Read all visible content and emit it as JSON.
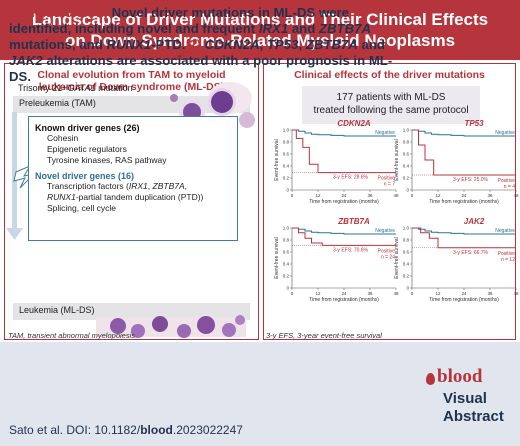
{
  "header": {
    "title_line1": "Landscape of Driver Mutations and Their Clinical Effects",
    "title_line2": "on Down Syndrome-Related Myeloid Neoplasms"
  },
  "left_panel": {
    "title_line1": "Clonal evolution from TAM to myeloid",
    "title_line2": "leukemia of Down syndrome (ML-DS)",
    "stage_top": "Preleukemia (TAM)",
    "trisomy_prefix": "Trisomy 21+",
    "trisomy_gene": "GATA1",
    "trisomy_suffix": " mutation",
    "known_title": "Known driver genes (26)",
    "known_items": [
      "Cohesin",
      "Epigenetic regulators",
      "Tyrosine kinases, RAS pathway"
    ],
    "novel_title": "Novel driver genes (16)",
    "novel_item1_prefix": "Transcription factors (",
    "novel_item1_gene1": "IRX1",
    "novel_item1_sep": ", ",
    "novel_item1_gene2": "ZBTB7A",
    "novel_item1_suffix": ",",
    "novel_item2_gene": "RUNX1",
    "novel_item2_suffix": "-partial tandem duplication (PTD))",
    "novel_item3": "Splicing, cell cycle",
    "stage_bottom": "Leukemia (ML-DS)",
    "footnote": "TAM, transient abnormal myelopoiesis"
  },
  "right_panel": {
    "title": "Clinical effects of the driver mutations",
    "cohort_line1": "177 patients with ML-DS",
    "cohort_line2": "treated following the same protocol",
    "footnote": "3-y EFS, 3-year event-free survival",
    "y_axis_label": "Event-free survival",
    "x_axis_label": "Time from registration (months)",
    "y_ticks": [
      "0",
      "0.2",
      "0.4",
      "0.6",
      "0.8",
      "1.0"
    ],
    "x_ticks": [
      "0",
      "12",
      "24",
      "36",
      "48"
    ]
  },
  "colors": {
    "brand_red": "#b6343c",
    "negative_blue": "#2e6f9b",
    "navy": "#1f3350",
    "conclusion_bg": "#e0e5ee"
  },
  "chart_data": [
    {
      "type": "line",
      "title": "CDKN2A",
      "xlabel": "Time from registration (months)",
      "ylabel": "Event-free survival",
      "ylim": [
        0,
        1.0
      ],
      "xlim": [
        0,
        48
      ],
      "annotation": "3-y EFS: 28.6%",
      "series": [
        {
          "name": "Negative",
          "x": [
            0,
            3,
            6,
            9,
            12,
            18,
            24,
            36,
            48
          ],
          "y": [
            1.0,
            0.98,
            0.95,
            0.93,
            0.92,
            0.91,
            0.9,
            0.9,
            0.9
          ]
        },
        {
          "name": "Positive",
          "n_label": "n = 7",
          "x": [
            0,
            2,
            5,
            8,
            12,
            36,
            48
          ],
          "y": [
            1.0,
            0.86,
            0.71,
            0.43,
            0.29,
            0.29,
            0.29
          ]
        }
      ]
    },
    {
      "type": "line",
      "title": "TP53",
      "xlabel": "Time from registration (months)",
      "ylabel": "Event-free survival",
      "ylim": [
        0,
        1.0
      ],
      "xlim": [
        0,
        48
      ],
      "annotation": "3-y EFS: 25.0%",
      "series": [
        {
          "name": "Negative",
          "x": [
            0,
            3,
            6,
            9,
            12,
            18,
            24,
            36,
            48
          ],
          "y": [
            1.0,
            0.98,
            0.95,
            0.93,
            0.92,
            0.91,
            0.9,
            0.9,
            0.9
          ]
        },
        {
          "name": "Positive",
          "n_label": "n = 4",
          "x": [
            0,
            3,
            6,
            10,
            36,
            48
          ],
          "y": [
            1.0,
            0.75,
            0.5,
            0.25,
            0.25,
            0.25
          ]
        }
      ]
    },
    {
      "type": "line",
      "title": "ZBTB7A",
      "xlabel": "Time from registration (months)",
      "ylabel": "Event-free survival",
      "ylim": [
        0,
        1.0
      ],
      "xlim": [
        0,
        48
      ],
      "annotation": "3-y EFS: 70.6%",
      "series": [
        {
          "name": "Negative",
          "x": [
            0,
            3,
            6,
            9,
            12,
            18,
            24,
            36,
            48
          ],
          "y": [
            1.0,
            0.98,
            0.95,
            0.93,
            0.92,
            0.91,
            0.9,
            0.9,
            0.9
          ]
        },
        {
          "name": "Positive",
          "n_label": "n = 24",
          "x": [
            0,
            3,
            6,
            9,
            14,
            36,
            48
          ],
          "y": [
            1.0,
            0.92,
            0.83,
            0.75,
            0.71,
            0.71,
            0.71
          ]
        }
      ]
    },
    {
      "type": "line",
      "title": "JAK2",
      "xlabel": "Time from registration (months)",
      "ylabel": "Event-free survival",
      "ylim": [
        0,
        1.0
      ],
      "xlim": [
        0,
        48
      ],
      "annotation": "3-y EFS: 66.7%",
      "series": [
        {
          "name": "Negative",
          "x": [
            0,
            3,
            6,
            9,
            12,
            18,
            24,
            36,
            48
          ],
          "y": [
            1.0,
            0.98,
            0.95,
            0.93,
            0.92,
            0.91,
            0.9,
            0.9,
            0.9
          ]
        },
        {
          "name": "Positive",
          "n_label": "n = 12",
          "x": [
            0,
            4,
            8,
            12,
            36,
            48
          ],
          "y": [
            1.0,
            0.92,
            0.83,
            0.67,
            0.67,
            0.67
          ]
        }
      ]
    }
  ],
  "conclusion": {
    "label": "Conclusions:",
    "num1": "1)",
    "part1": " Novel driver mutations in ML-DS were identified, including novel and frequent ",
    "gene_irx1": "IRX1",
    "and1": " and ",
    "gene_zbtb7a": "ZBTB7A",
    "part2": " mutations, and ",
    "gene_runx1": "RUNX1",
    "part3": "-PTD. ",
    "num2": "2)",
    "gene_cdkn2a": " CDKN2A",
    "comma1": ", ",
    "gene_tp53": "TP53",
    "comma2": ", ",
    "gene_zbtb7a_2": "ZBTB7A",
    "and2": " and ",
    "gene_jak2": "JAK2",
    "part4": " alterations are associated with a poor prognosis in ML-DS."
  },
  "citation": {
    "prefix": "Sato et al. DOI: 10.1182/",
    "journal": "blood",
    "suffix": ".2023022247"
  },
  "brand": {
    "blood": "blood",
    "visual": "Visual",
    "abstract": "Abstract"
  }
}
